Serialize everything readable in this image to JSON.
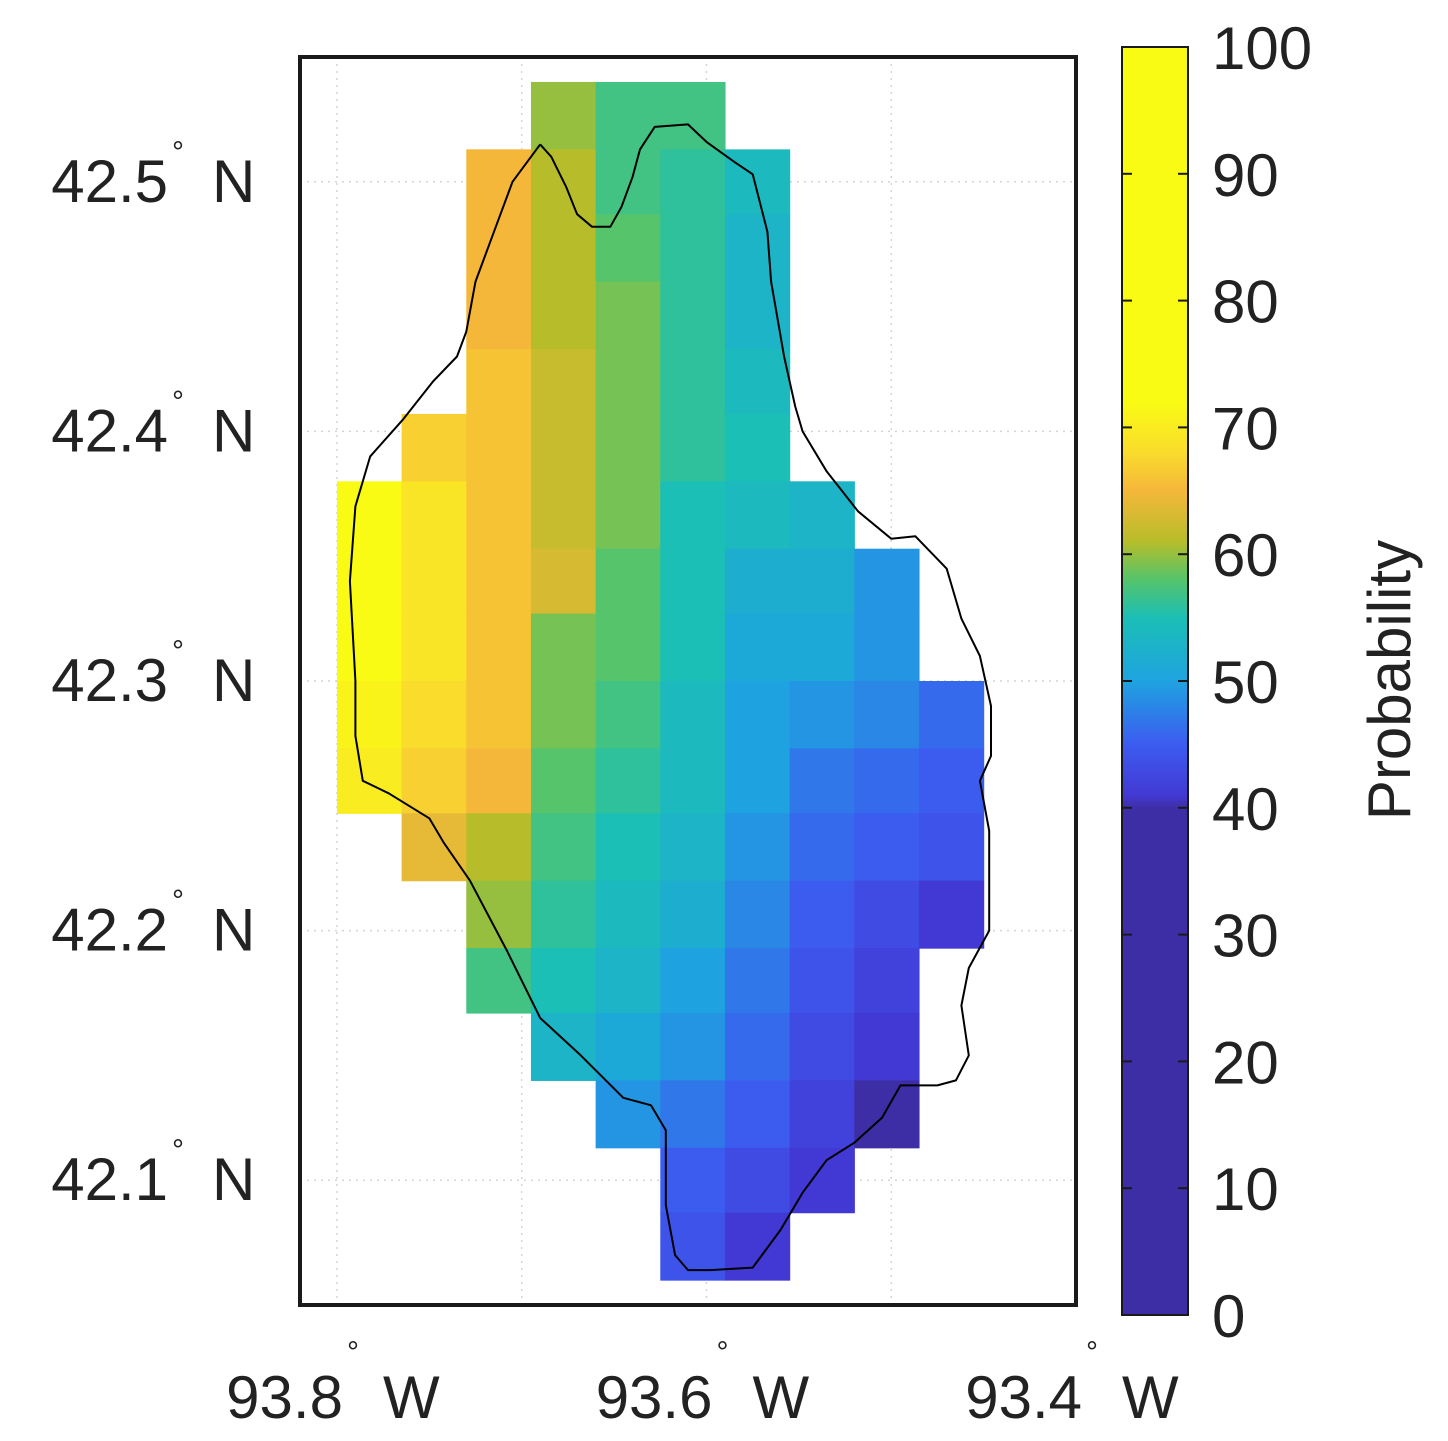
{
  "map": {
    "lat_ticks": [
      {
        "value": 42.5,
        "num": "42.5",
        "hemi": "N"
      },
      {
        "value": 42.4,
        "num": "42.4",
        "hemi": "N"
      },
      {
        "value": 42.3,
        "num": "42.3",
        "hemi": "N"
      },
      {
        "value": 42.2,
        "num": "42.2",
        "hemi": "N"
      },
      {
        "value": 42.1,
        "num": "42.1",
        "hemi": "N"
      }
    ],
    "lon_ticks": [
      {
        "value": -93.8,
        "num": "93.8",
        "hemi": "W"
      },
      {
        "value": -93.6,
        "num": "93.6",
        "hemi": "W"
      },
      {
        "value": -93.4,
        "num": "93.4",
        "hemi": "W"
      }
    ],
    "degree_symbol": "°",
    "frame_color": "#1a1a1a",
    "boundary_color": "#000000",
    "grid": true,
    "grid_style": "dotted light gray"
  },
  "colorbar": {
    "label": "Probability",
    "ticks": [
      "0",
      "10",
      "20",
      "30",
      "40",
      "50",
      "60",
      "70",
      "80",
      "90",
      "100"
    ],
    "range": [
      0,
      100
    ],
    "stops": [
      {
        "v": 0,
        "c": "#3e2ea5"
      },
      {
        "v": 40,
        "c": "#3e2ea5"
      },
      {
        "v": 41,
        "c": "#4239d4"
      },
      {
        "v": 45,
        "c": "#3c5cf0"
      },
      {
        "v": 50,
        "c": "#1ea3e0"
      },
      {
        "v": 55,
        "c": "#1bbfb5"
      },
      {
        "v": 58,
        "c": "#55c46a"
      },
      {
        "v": 61,
        "c": "#b7bd2a"
      },
      {
        "v": 65,
        "c": "#f5b73a"
      },
      {
        "v": 68,
        "c": "#f9dc2c"
      },
      {
        "v": 72,
        "c": "#f9fb14"
      },
      {
        "v": 100,
        "c": "#f9fb14"
      }
    ]
  },
  "chart_data": {
    "type": "heatmap",
    "title": "",
    "xlabel": "",
    "ylabel": "",
    "colorbar_label": "Probability",
    "value_range": [
      0,
      100
    ],
    "xlim": [
      -93.82,
      -93.4
    ],
    "ylim": [
      42.05,
      42.55
    ],
    "lon_edges": [
      -93.8,
      -93.765,
      -93.73,
      -93.695,
      -93.66,
      -93.625,
      -93.59,
      -93.555,
      -93.52,
      -93.485,
      -93.45,
      -93.415
    ],
    "lat_edges": [
      42.54,
      42.513,
      42.487,
      42.46,
      42.433,
      42.407,
      42.38,
      42.353,
      42.327,
      42.3,
      42.273,
      42.247,
      42.22,
      42.193,
      42.167,
      42.14,
      42.113,
      42.087,
      42.06
    ],
    "probability_grid": [
      [
        null,
        null,
        null,
        60,
        57,
        57,
        null,
        null,
        null,
        null,
        null
      ],
      [
        null,
        null,
        65,
        61,
        57,
        56,
        54,
        null,
        null,
        null,
        null
      ],
      [
        null,
        null,
        65,
        61,
        58,
        56,
        53,
        null,
        null,
        null,
        null
      ],
      [
        null,
        null,
        65,
        61,
        59,
        56,
        53,
        null,
        null,
        null,
        null
      ],
      [
        null,
        null,
        66,
        62,
        59,
        56,
        54,
        null,
        null,
        null,
        null
      ],
      [
        null,
        67,
        66,
        62,
        59,
        56,
        55,
        null,
        null,
        null,
        null
      ],
      [
        72,
        69,
        66,
        62,
        59,
        55,
        54,
        53,
        null,
        null,
        null
      ],
      [
        72,
        69,
        66,
        63,
        58,
        55,
        52,
        52,
        49,
        null,
        null
      ],
      [
        72,
        69,
        66,
        59,
        58,
        55,
        51,
        51,
        49,
        null,
        null
      ],
      [
        71,
        68,
        66,
        59,
        57,
        54,
        50,
        49,
        48,
        46,
        null
      ],
      [
        70,
        67,
        65,
        58,
        56,
        54,
        50,
        47,
        46,
        45,
        null
      ],
      [
        null,
        64,
        61,
        57,
        55,
        53,
        49,
        46,
        45,
        44,
        null
      ],
      [
        null,
        null,
        60,
        56,
        54,
        52,
        48,
        45,
        43,
        41,
        null
      ],
      [
        null,
        null,
        57,
        55,
        53,
        50,
        47,
        44,
        42,
        null,
        null
      ],
      [
        null,
        null,
        null,
        53,
        51,
        49,
        46,
        43,
        41,
        null,
        null
      ],
      [
        null,
        null,
        null,
        null,
        49,
        47,
        45,
        42,
        40,
        null,
        null
      ],
      [
        null,
        null,
        null,
        null,
        null,
        45,
        43,
        41,
        null,
        null,
        null
      ],
      [
        null,
        null,
        null,
        null,
        null,
        44,
        41,
        null,
        null,
        null,
        null
      ]
    ],
    "boundary_lonlat": [
      [
        -93.69,
        42.515
      ],
      [
        -93.684,
        42.51
      ],
      [
        -93.676,
        42.498
      ],
      [
        -93.67,
        42.487
      ],
      [
        -93.662,
        42.482
      ],
      [
        -93.652,
        42.482
      ],
      [
        -93.646,
        42.49
      ],
      [
        -93.64,
        42.502
      ],
      [
        -93.636,
        42.513
      ],
      [
        -93.628,
        42.522
      ],
      [
        -93.61,
        42.523
      ],
      [
        -93.6,
        42.516
      ],
      [
        -93.585,
        42.508
      ],
      [
        -93.575,
        42.503
      ],
      [
        -93.567,
        42.48
      ],
      [
        -93.565,
        42.46
      ],
      [
        -93.558,
        42.43
      ],
      [
        -93.552,
        42.41
      ],
      [
        -93.548,
        42.4
      ],
      [
        -93.535,
        42.384
      ],
      [
        -93.518,
        42.368
      ],
      [
        -93.5,
        42.357
      ],
      [
        -93.487,
        42.358
      ],
      [
        -93.47,
        42.345
      ],
      [
        -93.462,
        42.325
      ],
      [
        -93.452,
        42.31
      ],
      [
        -93.446,
        42.29
      ],
      [
        -93.446,
        42.27
      ],
      [
        -93.452,
        42.26
      ],
      [
        -93.447,
        42.24
      ],
      [
        -93.447,
        42.2
      ],
      [
        -93.458,
        42.185
      ],
      [
        -93.462,
        42.17
      ],
      [
        -93.458,
        42.15
      ],
      [
        -93.465,
        42.14
      ],
      [
        -93.475,
        42.138
      ],
      [
        -93.495,
        42.138
      ],
      [
        -93.505,
        42.125
      ],
      [
        -93.52,
        42.115
      ],
      [
        -93.535,
        42.108
      ],
      [
        -93.548,
        42.095
      ],
      [
        -93.56,
        42.08
      ],
      [
        -93.575,
        42.065
      ],
      [
        -93.598,
        42.064
      ],
      [
        -93.61,
        42.064
      ],
      [
        -93.617,
        42.07
      ],
      [
        -93.622,
        42.09
      ],
      [
        -93.622,
        42.12
      ],
      [
        -93.63,
        42.13
      ],
      [
        -93.645,
        42.133
      ],
      [
        -93.668,
        42.15
      ],
      [
        -93.69,
        42.165
      ],
      [
        -93.708,
        42.192
      ],
      [
        -93.728,
        42.22
      ],
      [
        -93.742,
        42.235
      ],
      [
        -93.75,
        42.245
      ],
      [
        -93.772,
        42.255
      ],
      [
        -93.786,
        42.26
      ],
      [
        -93.79,
        42.278
      ],
      [
        -93.79,
        42.3
      ],
      [
        -93.793,
        42.34
      ],
      [
        -93.79,
        42.37
      ],
      [
        -93.782,
        42.39
      ],
      [
        -93.764,
        42.405
      ],
      [
        -93.748,
        42.42
      ],
      [
        -93.735,
        42.43
      ],
      [
        -93.73,
        42.44
      ],
      [
        -93.725,
        42.46
      ],
      [
        -93.715,
        42.48
      ],
      [
        -93.705,
        42.5
      ],
      [
        -93.695,
        42.51
      ]
    ]
  }
}
